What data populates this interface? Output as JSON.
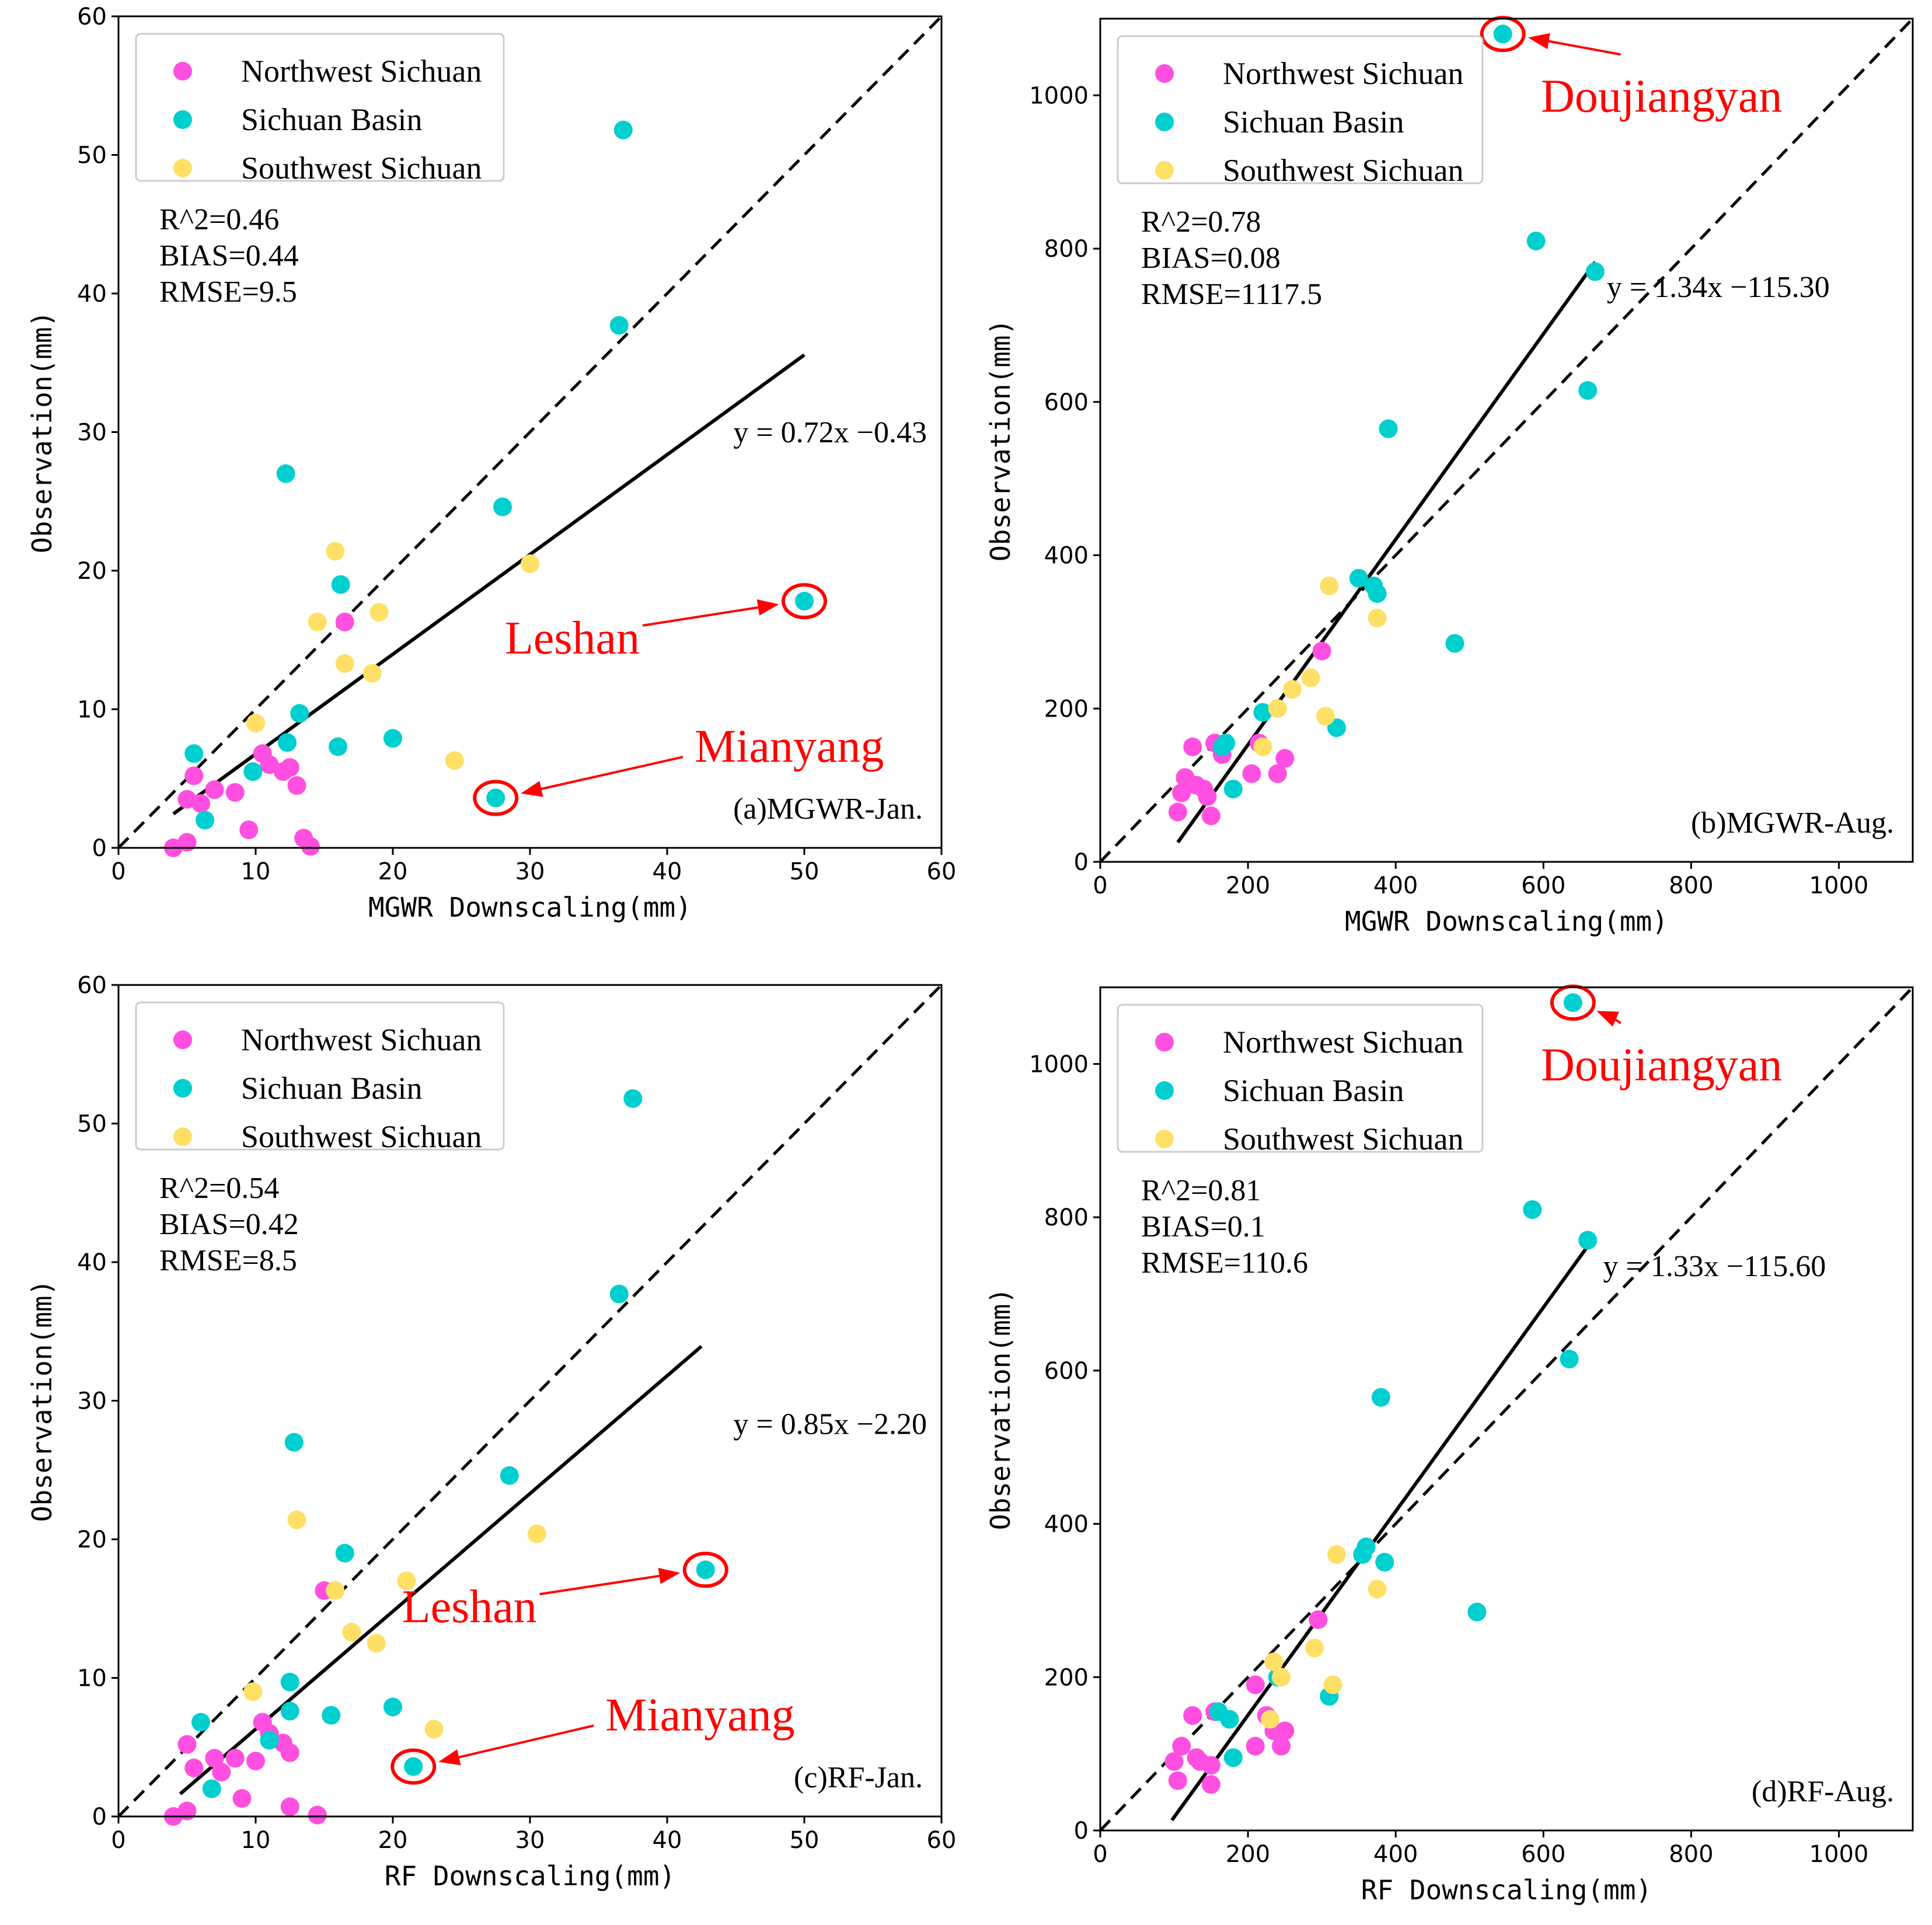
{
  "colors": {
    "Northwest Sichuan": "#ff4fe0",
    "Sichuan Basin": "#00cfcf",
    "Southwest Sichuan": "#ffe066",
    "annotation": "#ff0000"
  },
  "chart_data": [
    {
      "type": "scatter",
      "panel_label": "(a)MGWR-Jan.",
      "xlabel": "MGWR Downscaling(mm)",
      "ylabel": "Observation(mm)",
      "xlim": [
        0,
        60
      ],
      "ylim": [
        0,
        60
      ],
      "xticks": [
        0,
        10,
        20,
        30,
        40,
        50,
        60
      ],
      "yticks": [
        0,
        10,
        20,
        30,
        40,
        50,
        60
      ],
      "legend": [
        "Northwest Sichuan",
        "Sichuan Basin",
        "Southwest Sichuan"
      ],
      "legend_loc": "upper-left",
      "stats": [
        "R^2=0.46",
        "BIAS=0.44",
        "RMSE=9.5"
      ],
      "fit": {
        "slope": 0.72,
        "intercept": -0.43,
        "x_range": [
          4,
          50
        ],
        "label": "y = 0.72x −0.43"
      },
      "series": [
        {
          "name": "Northwest Sichuan",
          "points": [
            [
              4,
              0
            ],
            [
              5,
              0.4
            ],
            [
              5,
              3.5
            ],
            [
              5.5,
              5.2
            ],
            [
              6,
              3.2
            ],
            [
              7,
              4.2
            ],
            [
              8.5,
              4
            ],
            [
              9.5,
              1.3
            ],
            [
              10.5,
              6.8
            ],
            [
              11,
              6
            ],
            [
              12,
              5.5
            ],
            [
              12.5,
              5.8
            ],
            [
              13,
              4.5
            ],
            [
              13.5,
              0.7
            ],
            [
              14,
              0.1
            ],
            [
              16.5,
              16.3
            ]
          ]
        },
        {
          "name": "Sichuan Basin",
          "points": [
            [
              5.5,
              6.8
            ],
            [
              6.3,
              2
            ],
            [
              9.8,
              5.5
            ],
            [
              12.3,
              7.6
            ],
            [
              12.2,
              27
            ],
            [
              13.2,
              9.7
            ],
            [
              16,
              7.3
            ],
            [
              16.2,
              19
            ],
            [
              20,
              7.9
            ],
            [
              28,
              24.6
            ],
            [
              27.5,
              3.6
            ],
            [
              36.5,
              37.7
            ],
            [
              36.8,
              51.8
            ],
            [
              50,
              17.8
            ]
          ]
        },
        {
          "name": "Southwest Sichuan",
          "points": [
            [
              10,
              9
            ],
            [
              14.5,
              16.3
            ],
            [
              15.8,
              21.4
            ],
            [
              16.5,
              13.3
            ],
            [
              18.5,
              12.6
            ],
            [
              19,
              17
            ],
            [
              24.5,
              6.3
            ],
            [
              30,
              20.5
            ]
          ]
        }
      ],
      "annotations": [
        {
          "text": "Leshan",
          "target": [
            50,
            17.8
          ],
          "text_at": [
            38,
            15.2
          ]
        },
        {
          "text": "Mianyang",
          "target": [
            27.5,
            3.6
          ],
          "text_at": [
            42,
            7.4
          ]
        }
      ]
    },
    {
      "type": "scatter",
      "panel_label": "(b)MGWR-Aug.",
      "xlabel": "MGWR Downscaling(mm)",
      "ylabel": "Observation(mm)",
      "xlim": [
        0,
        1100
      ],
      "ylim": [
        0,
        1100
      ],
      "xticks": [
        0,
        200,
        400,
        600,
        800,
        1000
      ],
      "yticks": [
        0,
        200,
        400,
        600,
        800,
        1000
      ],
      "legend": [
        "Northwest Sichuan",
        "Sichuan Basin",
        "Southwest Sichuan"
      ],
      "legend_loc": "upper-left",
      "stats": [
        "R^2=0.78",
        "BIAS=0.08",
        "RMSE=1117.5"
      ],
      "fit": {
        "slope": 1.34,
        "intercept": -115.3,
        "x_range": [
          105,
          670
        ],
        "label": "y = 1.34x −115.30"
      },
      "series": [
        {
          "name": "Northwest Sichuan",
          "points": [
            [
              105,
              65
            ],
            [
              110,
              90
            ],
            [
              115,
              110
            ],
            [
              125,
              150
            ],
            [
              130,
              100
            ],
            [
              140,
              95
            ],
            [
              145,
              85
            ],
            [
              150,
              60
            ],
            [
              155,
              155
            ],
            [
              165,
              140
            ],
            [
              205,
              115
            ],
            [
              215,
              155
            ],
            [
              240,
              115
            ],
            [
              250,
              135
            ],
            [
              300,
              275
            ]
          ]
        },
        {
          "name": "Sichuan Basin",
          "points": [
            [
              165,
              150
            ],
            [
              170,
              155
            ],
            [
              180,
              95
            ],
            [
              220,
              195
            ],
            [
              320,
              175
            ],
            [
              350,
              370
            ],
            [
              370,
              360
            ],
            [
              375,
              350
            ],
            [
              390,
              565
            ],
            [
              480,
              285
            ],
            [
              545,
              1080
            ],
            [
              590,
              810
            ],
            [
              660,
              615
            ],
            [
              670,
              770
            ]
          ]
        },
        {
          "name": "Southwest Sichuan",
          "points": [
            [
              220,
              150
            ],
            [
              240,
              200
            ],
            [
              260,
              225
            ],
            [
              285,
              240
            ],
            [
              305,
              190
            ],
            [
              310,
              360
            ],
            [
              375,
              318
            ]
          ]
        }
      ],
      "annotations": [
        {
          "text": "Doujiangyan",
          "target": [
            545,
            1080
          ],
          "text_at": [
            760,
            1000
          ]
        }
      ]
    },
    {
      "type": "scatter",
      "panel_label": "(c)RF-Jan.",
      "xlabel": "RF Downscaling(mm)",
      "ylabel": "Observation(mm)",
      "xlim": [
        0,
        60
      ],
      "ylim": [
        0,
        60
      ],
      "xticks": [
        0,
        10,
        20,
        30,
        40,
        50,
        60
      ],
      "yticks": [
        0,
        10,
        20,
        30,
        40,
        50,
        60
      ],
      "legend": [
        "Northwest Sichuan",
        "Sichuan Basin",
        "Southwest Sichuan"
      ],
      "legend_loc": "upper-left",
      "stats": [
        "R^2=0.54",
        "BIAS=0.42",
        "RMSE=8.5"
      ],
      "fit": {
        "slope": 0.85,
        "intercept": -2.2,
        "x_range": [
          4.5,
          42.5
        ],
        "label": "y = 0.85x −2.20"
      },
      "series": [
        {
          "name": "Northwest Sichuan",
          "points": [
            [
              4,
              0
            ],
            [
              5,
              0.4
            ],
            [
              5,
              5.2
            ],
            [
              5.5,
              3.5
            ],
            [
              7,
              4.2
            ],
            [
              7.5,
              3.2
            ],
            [
              8.5,
              4.2
            ],
            [
              9,
              1.3
            ],
            [
              10,
              4
            ],
            [
              10.5,
              6.8
            ],
            [
              11,
              6
            ],
            [
              12,
              5.3
            ],
            [
              12.5,
              4.6
            ],
            [
              12.5,
              0.7
            ],
            [
              14.5,
              0.1
            ],
            [
              15,
              16.3
            ]
          ]
        },
        {
          "name": "Sichuan Basin",
          "points": [
            [
              6,
              6.8
            ],
            [
              6.8,
              2
            ],
            [
              11,
              5.5
            ],
            [
              12.5,
              7.6
            ],
            [
              12.5,
              9.7
            ],
            [
              12.8,
              27
            ],
            [
              15.5,
              7.3
            ],
            [
              16.5,
              19
            ],
            [
              20,
              7.9
            ],
            [
              21.5,
              3.6
            ],
            [
              28.5,
              24.6
            ],
            [
              36.5,
              37.7
            ],
            [
              37.5,
              51.8
            ],
            [
              42.8,
              17.8
            ]
          ]
        },
        {
          "name": "Southwest Sichuan",
          "points": [
            [
              9.8,
              9
            ],
            [
              13,
              21.4
            ],
            [
              15.8,
              16.3
            ],
            [
              17,
              13.3
            ],
            [
              18.8,
              12.5
            ],
            [
              21,
              17
            ],
            [
              23,
              6.3
            ],
            [
              30.5,
              20.4
            ]
          ]
        }
      ],
      "annotations": [
        {
          "text": "Leshan",
          "target": [
            42.8,
            17.8
          ],
          "text_at": [
            30.5,
            15.2
          ]
        },
        {
          "text": "Mianyang",
          "target": [
            21.5,
            3.6
          ],
          "text_at": [
            35.5,
            7.4
          ]
        }
      ]
    },
    {
      "type": "scatter",
      "panel_label": "(d)RF-Aug.",
      "xlabel": "RF Downscaling(mm)",
      "ylabel": "Observation(mm)",
      "xlim": [
        0,
        1100
      ],
      "ylim": [
        0,
        1100
      ],
      "xticks": [
        0,
        200,
        400,
        600,
        800,
        1000
      ],
      "yticks": [
        0,
        200,
        400,
        600,
        800,
        1000
      ],
      "legend": [
        "Northwest Sichuan",
        "Sichuan Basin",
        "Southwest Sichuan"
      ],
      "legend_loc": "upper-left",
      "stats": [
        "R^2=0.81",
        "BIAS=0.1",
        "RMSE=110.6"
      ],
      "fit": {
        "slope": 1.33,
        "intercept": -115.6,
        "x_range": [
          97,
          665
        ],
        "label": "y = 1.33x −115.60"
      },
      "series": [
        {
          "name": "Northwest Sichuan",
          "points": [
            [
              100,
              90
            ],
            [
              105,
              65
            ],
            [
              110,
              110
            ],
            [
              125,
              150
            ],
            [
              130,
              95
            ],
            [
              135,
              90
            ],
            [
              150,
              85
            ],
            [
              150,
              60
            ],
            [
              155,
              155
            ],
            [
              210,
              190
            ],
            [
              210,
              110
            ],
            [
              225,
              150
            ],
            [
              235,
              130
            ],
            [
              245,
              110
            ],
            [
              250,
              130
            ],
            [
              295,
              275
            ]
          ]
        },
        {
          "name": "Sichuan Basin",
          "points": [
            [
              160,
              155
            ],
            [
              175,
              145
            ],
            [
              180,
              95
            ],
            [
              240,
              200
            ],
            [
              310,
              175
            ],
            [
              355,
              360
            ],
            [
              360,
              370
            ],
            [
              385,
              350
            ],
            [
              380,
              565
            ],
            [
              510,
              285
            ],
            [
              585,
              810
            ],
            [
              635,
              615
            ],
            [
              640,
              1080
            ],
            [
              660,
              770
            ]
          ]
        },
        {
          "name": "Southwest Sichuan",
          "points": [
            [
              230,
              145
            ],
            [
              235,
              220
            ],
            [
              245,
              200
            ],
            [
              290,
              238
            ],
            [
              315,
              190
            ],
            [
              320,
              360
            ],
            [
              375,
              315
            ]
          ]
        }
      ],
      "annotations": [
        {
          "text": "Doujiangyan",
          "target": [
            640,
            1080
          ],
          "text_at": [
            760,
            1000
          ]
        }
      ]
    }
  ]
}
